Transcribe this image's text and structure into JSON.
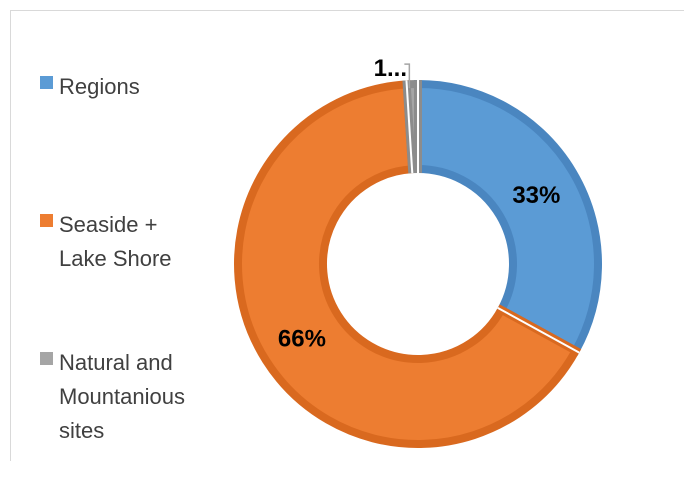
{
  "chart_data": {
    "type": "pie",
    "donut": true,
    "categories": [
      "Regions",
      "Seaside + Lake Shore",
      "Natural and Mountanious sites"
    ],
    "legend": [
      {
        "label": "Regions",
        "color": "#5b9bd5"
      },
      {
        "label": "Seaside + Lake Shore",
        "color": "#ed7d31"
      },
      {
        "label": "Natural and Mountanious sites",
        "color": "#a5a5a5"
      }
    ],
    "values": [
      33,
      66,
      1
    ],
    "data_labels": [
      "33%",
      "66%",
      "1..."
    ],
    "legend_position": "left",
    "colors": [
      "#5b9bd5",
      "#ed7d31",
      "#a5a5a5"
    ],
    "border_colors": [
      "#4a86c0",
      "#d9691f",
      "#8c8c8c"
    ]
  }
}
